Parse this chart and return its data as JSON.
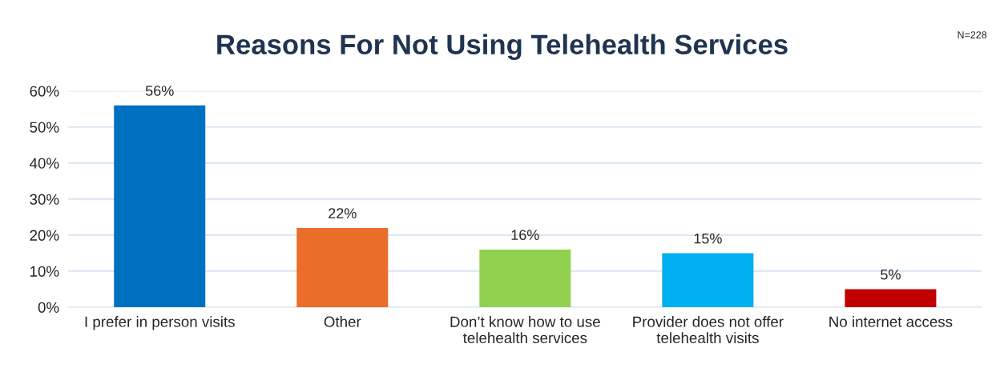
{
  "chart_data": {
    "type": "bar",
    "title": "Reasons For Not Using Telehealth Services",
    "annotations": [
      "N=228"
    ],
    "categories": [
      "I prefer in person visits",
      "Other",
      "Don’t know how to use\ntelehealth services",
      "Provider does not offer\ntelehealth visits",
      "No internet access"
    ],
    "values": [
      56,
      22,
      16,
      15,
      5
    ],
    "value_labels": [
      "56%",
      "22%",
      "16%",
      "15%",
      "5%"
    ],
    "colors": [
      "#0070c0",
      "#ea6e2a",
      "#92d050",
      "#00b0f0",
      "#c00000"
    ],
    "ylim": [
      0,
      60
    ],
    "yticks": [
      {
        "value": 0,
        "label": "0%"
      },
      {
        "value": 10,
        "label": "10%"
      },
      {
        "value": 20,
        "label": "20%"
      },
      {
        "value": 30,
        "label": "30%"
      },
      {
        "value": 40,
        "label": "40%"
      },
      {
        "value": 50,
        "label": "50%"
      },
      {
        "value": 60,
        "label": "60%"
      }
    ],
    "grid": "y",
    "legend": false
  }
}
